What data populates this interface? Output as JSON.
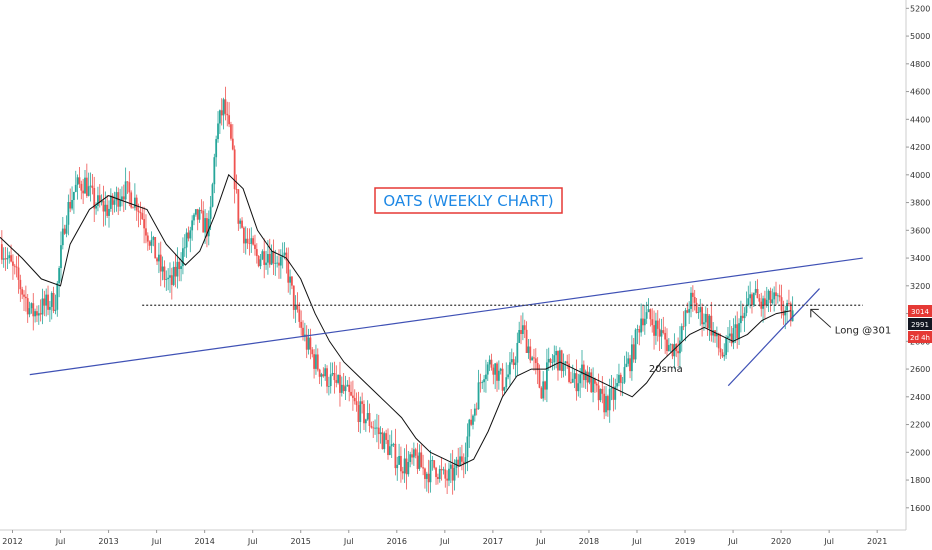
{
  "colors": {
    "up": "#26a69a",
    "down": "#ef5350",
    "sma": "#111111",
    "trendline": "#3f51b5",
    "resistance": "#333333",
    "title_box": "#e53935",
    "title_text": "#1e88e5",
    "badge_red": "#e53935",
    "badge_dark": "#131722"
  },
  "chart_data": {
    "type": "candlestick",
    "title": "OATS (WEEKLY CHART)",
    "x_tick_labels": [
      "2012",
      "Jul",
      "2013",
      "Jul",
      "2014",
      "Jul",
      "2015",
      "Jul",
      "2016",
      "Jul",
      "2017",
      "Jul",
      "2018",
      "Jul",
      "2019",
      "Jul",
      "2020",
      "Jul",
      "2021"
    ],
    "x_tick_values": [
      2012.0,
      2012.5,
      2013.0,
      2013.5,
      2014.0,
      2014.5,
      2015.0,
      2015.5,
      2016.0,
      2016.5,
      2017.0,
      2017.5,
      2018.0,
      2018.5,
      2019.0,
      2019.5,
      2020.0,
      2020.5,
      2021.0
    ],
    "x_range": [
      2011.87,
      2021.3
    ],
    "y_tick_values": [
      1600,
      1800,
      2000,
      2200,
      2400,
      2600,
      2800,
      3000,
      3200,
      3400,
      3600,
      3800,
      4000,
      4200,
      4400,
      4600,
      4800,
      5000,
      5200
    ],
    "y_tick_labels": [
      "1600",
      "1800",
      "2000",
      "2200",
      "2400",
      "2600",
      "2800",
      "3000",
      "3200",
      "3400",
      "3600",
      "3800",
      "4000",
      "4200",
      "4400",
      "4600",
      "4800",
      "5000",
      "5200"
    ],
    "y_range": [
      1440,
      5260
    ],
    "price_path": {
      "x": [
        2011.87,
        2012.05,
        2012.2,
        2012.32,
        2012.45,
        2012.55,
        2012.65,
        2012.75,
        2012.85,
        2013.0,
        2013.15,
        2013.3,
        2013.45,
        2013.55,
        2013.65,
        2013.8,
        2013.92,
        2014.05,
        2014.12,
        2014.2,
        2014.28,
        2014.35,
        2014.45,
        2014.55,
        2014.65,
        2014.75,
        2014.85,
        2014.95,
        2015.05,
        2015.15,
        2015.25,
        2015.35,
        2015.5,
        2015.6,
        2015.75,
        2015.9,
        2016.0,
        2016.1,
        2016.2,
        2016.3,
        2016.4,
        2016.5,
        2016.6,
        2016.7,
        2016.8,
        2016.9,
        2017.0,
        2017.1,
        2017.2,
        2017.3,
        2017.4,
        2017.5,
        2017.55,
        2017.65,
        2017.75,
        2017.85,
        2017.95,
        2018.05,
        2018.15,
        2018.25,
        2018.35,
        2018.45,
        2018.55,
        2018.65,
        2018.75,
        2018.85,
        2018.95,
        2019.05,
        2019.15,
        2019.25,
        2019.35,
        2019.4,
        2019.5,
        2019.6,
        2019.7,
        2019.8,
        2019.9,
        2020.0,
        2020.05,
        2020.12
      ],
      "y": [
        3500,
        3250,
        3000,
        3050,
        3100,
        3700,
        3900,
        3950,
        3800,
        3750,
        3900,
        3800,
        3500,
        3300,
        3200,
        3500,
        3700,
        3600,
        4300,
        4500,
        4200,
        3700,
        3500,
        3400,
        3450,
        3400,
        3350,
        3000,
        2800,
        2650,
        2550,
        2500,
        2400,
        2300,
        2200,
        2050,
        1950,
        1900,
        1950,
        1850,
        1900,
        1800,
        1850,
        2000,
        2300,
        2600,
        2650,
        2500,
        2600,
        2900,
        2700,
        2450,
        2550,
        2700,
        2600,
        2500,
        2600,
        2450,
        2350,
        2400,
        2550,
        2700,
        3000,
        2950,
        2850,
        2750,
        2800,
        3100,
        3000,
        2950,
        2750,
        2700,
        2850,
        2950,
        3150,
        3050,
        3100,
        3050,
        3000,
        2990
      ]
    },
    "sma20": {
      "x": [
        2011.87,
        2012.1,
        2012.3,
        2012.5,
        2012.6,
        2012.8,
        2013.0,
        2013.2,
        2013.4,
        2013.6,
        2013.8,
        2013.95,
        2014.1,
        2014.25,
        2014.4,
        2014.55,
        2014.7,
        2014.85,
        2015.0,
        2015.15,
        2015.3,
        2015.45,
        2015.6,
        2015.75,
        2015.9,
        2016.05,
        2016.2,
        2016.35,
        2016.5,
        2016.65,
        2016.8,
        2016.95,
        2017.1,
        2017.25,
        2017.4,
        2017.55,
        2017.7,
        2017.85,
        2018.0,
        2018.15,
        2018.3,
        2018.45,
        2018.6,
        2018.75,
        2018.9,
        2019.05,
        2019.2,
        2019.35,
        2019.5,
        2019.65,
        2019.8,
        2019.95,
        2020.1
      ],
      "y": [
        3550,
        3400,
        3250,
        3200,
        3500,
        3750,
        3850,
        3800,
        3750,
        3500,
        3350,
        3450,
        3700,
        4000,
        3900,
        3600,
        3450,
        3400,
        3250,
        3000,
        2800,
        2650,
        2550,
        2450,
        2350,
        2250,
        2100,
        2000,
        1950,
        1900,
        1950,
        2150,
        2400,
        2550,
        2600,
        2600,
        2650,
        2600,
        2550,
        2500,
        2450,
        2400,
        2500,
        2650,
        2750,
        2850,
        2900,
        2850,
        2800,
        2850,
        2950,
        3000,
        3020
      ]
    },
    "trendlines": [
      {
        "x": [
          2012.18,
          2020.85
        ],
        "y": [
          2560,
          3400
        ]
      },
      {
        "x": [
          2019.45,
          2020.4
        ],
        "y": [
          2480,
          3180
        ]
      }
    ],
    "resistance_level": {
      "value": 3060,
      "x": [
        2013.35,
        2020.85
      ]
    },
    "annotations": [
      {
        "label": "20sma",
        "x": 2018.8,
        "y": 2580
      },
      {
        "label": "Long @301",
        "x": 2020.33,
        "y": 2900
      }
    ],
    "price_badges": [
      "3014",
      "2991",
      "2d 4h"
    ]
  }
}
